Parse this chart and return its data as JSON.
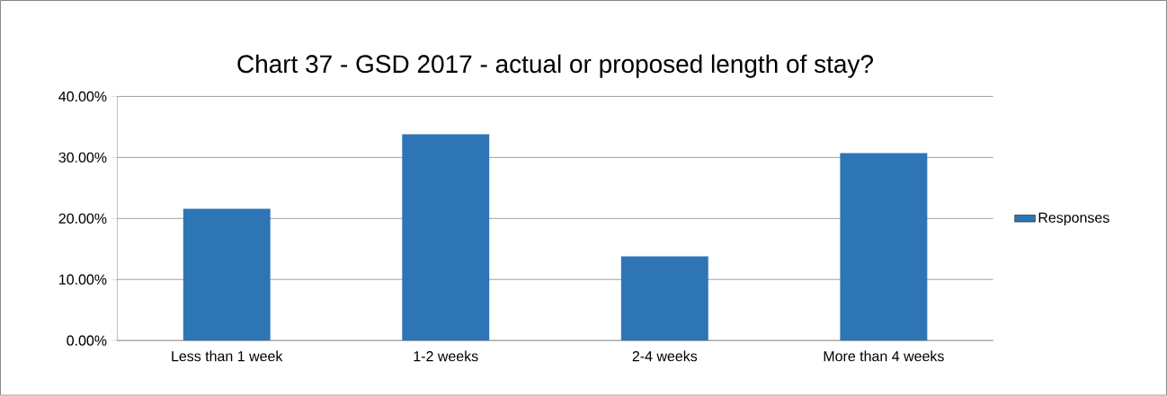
{
  "chart_data": {
    "type": "bar",
    "title": "Chart 37 - GSD 2017 - actual or proposed length of stay?",
    "categories": [
      "Less than 1 week",
      "1-2 weeks",
      "2-4 weeks",
      "More than 4 weeks"
    ],
    "series": [
      {
        "name": "Responses",
        "color": "#2e75b6",
        "values": [
          21.6,
          33.8,
          13.8,
          30.7
        ]
      }
    ],
    "ylim": [
      0,
      40
    ],
    "yticks": [
      {
        "value": 0,
        "label": "0.00%"
      },
      {
        "value": 10,
        "label": "10.00%"
      },
      {
        "value": 20,
        "label": "20.00%"
      },
      {
        "value": 30,
        "label": "30.00%"
      },
      {
        "value": 40,
        "label": "40.00%"
      }
    ],
    "grid": "y",
    "legend": "right"
  }
}
